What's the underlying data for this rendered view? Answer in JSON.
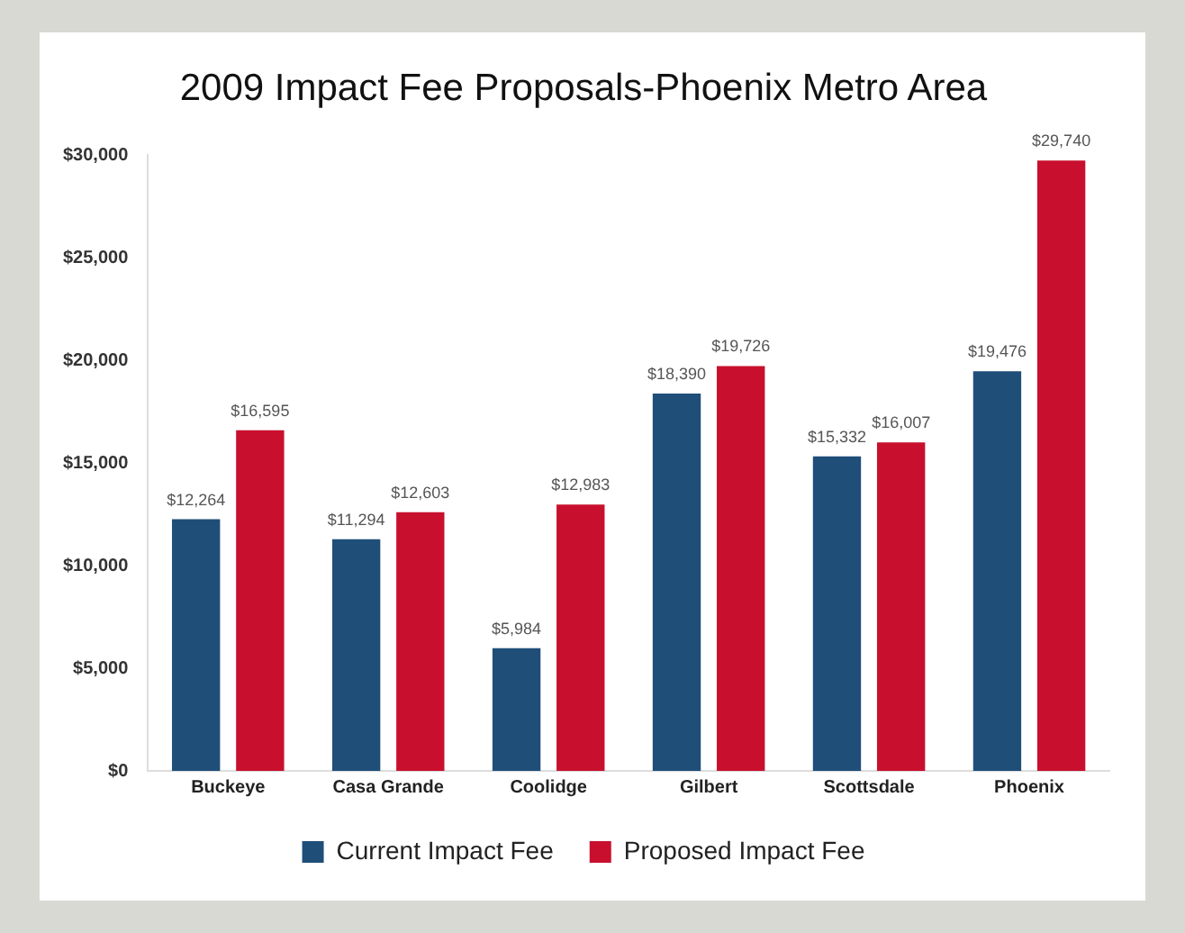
{
  "chart_data": {
    "type": "bar",
    "title": "2009 Impact Fee Proposals-Phoenix Metro Area",
    "categories": [
      "Buckeye",
      "Casa Grande",
      "Coolidge",
      "Gilbert",
      "Scottsdale",
      "Phoenix"
    ],
    "series": [
      {
        "name": "Current Impact Fee",
        "color": "#1f4e79",
        "values": [
          12264,
          11294,
          5984,
          18390,
          15332,
          19476
        ],
        "value_labels": [
          "$12,264",
          "$11,294",
          "$5,984",
          "$18,390",
          "$15,332",
          "$19,476"
        ]
      },
      {
        "name": "Proposed Impact Fee",
        "color": "#c8102e",
        "values": [
          16595,
          12603,
          12983,
          19726,
          16007,
          29740
        ],
        "value_labels": [
          "$16,595",
          "$12,603",
          "$12,983",
          "$19,726",
          "$16,007",
          "$29,740"
        ]
      }
    ],
    "ylim": [
      0,
      30000
    ],
    "yticks": [
      {
        "value": 0,
        "label": "$0"
      },
      {
        "value": 5000,
        "label": "$5,000"
      },
      {
        "value": 10000,
        "label": "$10,000"
      },
      {
        "value": 15000,
        "label": "$15,000"
      },
      {
        "value": 20000,
        "label": "$20,000"
      },
      {
        "value": 25000,
        "label": "$25,000"
      },
      {
        "value": 30000,
        "label": "$30,000"
      }
    ],
    "grid": false,
    "legend": "bottom"
  }
}
